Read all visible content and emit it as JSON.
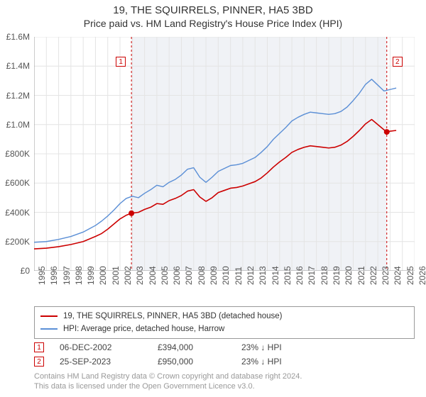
{
  "title": "19, THE SQUIRRELS, PINNER, HA5 3BD",
  "subtitle": "Price paid vs. HM Land Registry's House Price Index (HPI)",
  "chart": {
    "type": "line",
    "background_color": "#ffffff",
    "shade_color": "#f0f2f6",
    "shade_start_x": 2002.93,
    "shade_end_x": 2023.73,
    "grid_color": "#e4e4e4",
    "axis_color": "#999999",
    "tick_color": "#999999",
    "label_color": "#555555",
    "label_fontsize": 12,
    "xlim": [
      1995,
      2026
    ],
    "ylim": [
      0,
      1600000
    ],
    "ytick_step": 200000,
    "ytick_labels": [
      "£0",
      "£200K",
      "£400K",
      "£600K",
      "£800K",
      "£1.0M",
      "£1.2M",
      "£1.4M",
      "£1.6M"
    ],
    "xtick_step": 1,
    "xtick_labels": [
      "1995",
      "1996",
      "1997",
      "1998",
      "1999",
      "2000",
      "2001",
      "2002",
      "2003",
      "2004",
      "2005",
      "2006",
      "2007",
      "2008",
      "2009",
      "2010",
      "2011",
      "2012",
      "2013",
      "2014",
      "2015",
      "2016",
      "2017",
      "2018",
      "2019",
      "2020",
      "2021",
      "2022",
      "2023",
      "2024",
      "2025",
      "2026"
    ],
    "series": [
      {
        "id": "price_paid",
        "label": "19, THE SQUIRRELS, PINNER, HA5 3BD (detached house)",
        "color": "#cc0000",
        "width": 1.6,
        "data": [
          [
            1995.0,
            150000
          ],
          [
            1996.0,
            155000
          ],
          [
            1997.0,
            165000
          ],
          [
            1998.0,
            180000
          ],
          [
            1999.0,
            200000
          ],
          [
            2000.0,
            235000
          ],
          [
            2000.5,
            255000
          ],
          [
            2001.0,
            285000
          ],
          [
            2001.5,
            320000
          ],
          [
            2002.0,
            355000
          ],
          [
            2002.5,
            380000
          ],
          [
            2002.93,
            394000
          ],
          [
            2003.5,
            400000
          ],
          [
            2004.0,
            420000
          ],
          [
            2004.5,
            435000
          ],
          [
            2005.0,
            460000
          ],
          [
            2005.5,
            455000
          ],
          [
            2006.0,
            480000
          ],
          [
            2006.5,
            495000
          ],
          [
            2007.0,
            515000
          ],
          [
            2007.5,
            545000
          ],
          [
            2008.0,
            555000
          ],
          [
            2008.5,
            505000
          ],
          [
            2009.0,
            475000
          ],
          [
            2009.5,
            500000
          ],
          [
            2010.0,
            535000
          ],
          [
            2010.5,
            550000
          ],
          [
            2011.0,
            565000
          ],
          [
            2011.5,
            570000
          ],
          [
            2012.0,
            580000
          ],
          [
            2012.5,
            595000
          ],
          [
            2013.0,
            610000
          ],
          [
            2013.5,
            635000
          ],
          [
            2014.0,
            670000
          ],
          [
            2014.5,
            710000
          ],
          [
            2015.0,
            745000
          ],
          [
            2015.5,
            775000
          ],
          [
            2016.0,
            810000
          ],
          [
            2016.5,
            830000
          ],
          [
            2017.0,
            845000
          ],
          [
            2017.5,
            855000
          ],
          [
            2018.0,
            850000
          ],
          [
            2018.5,
            845000
          ],
          [
            2019.0,
            840000
          ],
          [
            2019.5,
            845000
          ],
          [
            2020.0,
            860000
          ],
          [
            2020.5,
            885000
          ],
          [
            2021.0,
            920000
          ],
          [
            2021.5,
            960000
          ],
          [
            2022.0,
            1005000
          ],
          [
            2022.5,
            1035000
          ],
          [
            2023.0,
            1000000
          ],
          [
            2023.5,
            965000
          ],
          [
            2023.73,
            950000
          ],
          [
            2024.0,
            955000
          ],
          [
            2024.5,
            960000
          ]
        ]
      },
      {
        "id": "hpi",
        "label": "HPI: Average price, detached house, Harrow",
        "color": "#5b8fd6",
        "width": 1.4,
        "data": [
          [
            1995.0,
            195000
          ],
          [
            1996.0,
            200000
          ],
          [
            1997.0,
            215000
          ],
          [
            1998.0,
            235000
          ],
          [
            1999.0,
            265000
          ],
          [
            2000.0,
            310000
          ],
          [
            2000.5,
            340000
          ],
          [
            2001.0,
            375000
          ],
          [
            2001.5,
            415000
          ],
          [
            2002.0,
            460000
          ],
          [
            2002.5,
            495000
          ],
          [
            2003.0,
            510000
          ],
          [
            2003.5,
            500000
          ],
          [
            2004.0,
            530000
          ],
          [
            2004.5,
            555000
          ],
          [
            2005.0,
            585000
          ],
          [
            2005.5,
            575000
          ],
          [
            2006.0,
            605000
          ],
          [
            2006.5,
            625000
          ],
          [
            2007.0,
            655000
          ],
          [
            2007.5,
            695000
          ],
          [
            2008.0,
            705000
          ],
          [
            2008.5,
            640000
          ],
          [
            2009.0,
            605000
          ],
          [
            2009.5,
            640000
          ],
          [
            2010.0,
            680000
          ],
          [
            2010.5,
            700000
          ],
          [
            2011.0,
            720000
          ],
          [
            2011.5,
            725000
          ],
          [
            2012.0,
            735000
          ],
          [
            2012.5,
            755000
          ],
          [
            2013.0,
            775000
          ],
          [
            2013.5,
            810000
          ],
          [
            2014.0,
            850000
          ],
          [
            2014.5,
            900000
          ],
          [
            2015.0,
            940000
          ],
          [
            2015.5,
            980000
          ],
          [
            2016.0,
            1025000
          ],
          [
            2016.5,
            1050000
          ],
          [
            2017.0,
            1070000
          ],
          [
            2017.5,
            1085000
          ],
          [
            2018.0,
            1080000
          ],
          [
            2018.5,
            1075000
          ],
          [
            2019.0,
            1070000
          ],
          [
            2019.5,
            1075000
          ],
          [
            2020.0,
            1090000
          ],
          [
            2020.5,
            1120000
          ],
          [
            2021.0,
            1165000
          ],
          [
            2021.5,
            1215000
          ],
          [
            2022.0,
            1275000
          ],
          [
            2022.5,
            1310000
          ],
          [
            2023.0,
            1270000
          ],
          [
            2023.5,
            1230000
          ],
          [
            2024.0,
            1240000
          ],
          [
            2024.5,
            1250000
          ]
        ]
      }
    ],
    "sale_markers": [
      {
        "n": "1",
        "x": 2002.93,
        "y": 394000,
        "line_color": "#cc0000",
        "box_border": "#cc0000",
        "box_text": "#cc0000",
        "label_side": "left"
      },
      {
        "n": "2",
        "x": 2023.73,
        "y": 950000,
        "line_color": "#cc0000",
        "box_border": "#cc0000",
        "box_text": "#cc0000",
        "label_side": "right"
      }
    ],
    "sale_dot_color": "#cc0000",
    "sale_dot_radius": 4
  },
  "legend": {
    "border_color": "#999999",
    "items": [
      {
        "label": "19, THE SQUIRRELS, PINNER, HA5 3BD (detached house)",
        "color": "#cc0000"
      },
      {
        "label": "HPI: Average price, detached house, Harrow",
        "color": "#5b8fd6"
      }
    ]
  },
  "sales_table": {
    "rows": [
      {
        "n": "1",
        "date": "06-DEC-2002",
        "price": "£394,000",
        "pct": "23% ↓ HPI",
        "box_border": "#cc0000",
        "box_text": "#cc0000"
      },
      {
        "n": "2",
        "date": "25-SEP-2023",
        "price": "£950,000",
        "pct": "23% ↓ HPI",
        "box_border": "#cc0000",
        "box_text": "#cc0000"
      }
    ]
  },
  "footer": {
    "line1": "Contains HM Land Registry data © Crown copyright and database right 2024.",
    "line2": "This data is licensed under the Open Government Licence v3.0."
  }
}
